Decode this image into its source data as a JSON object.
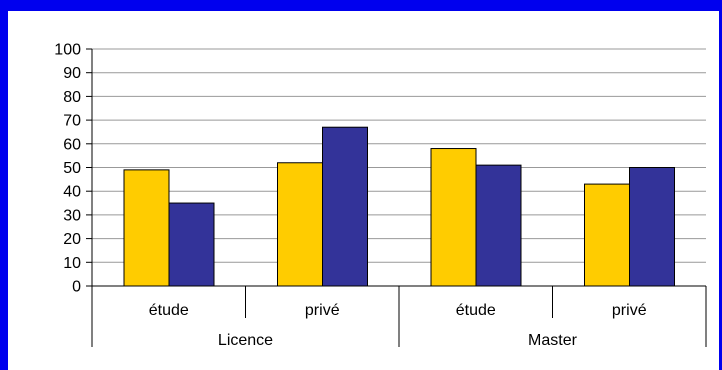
{
  "chart_data": {
    "type": "bar",
    "groups": [
      {
        "label": "Licence",
        "categories": [
          "étude",
          "privé"
        ]
      },
      {
        "label": "Master",
        "categories": [
          "étude",
          "privé"
        ]
      }
    ],
    "categories": [
      "étude",
      "privé",
      "étude",
      "privé"
    ],
    "series": [
      {
        "values": [
          49,
          52,
          58,
          43
        ],
        "color": "#ffcc00"
      },
      {
        "values": [
          35,
          67,
          51,
          50
        ],
        "color": "#333399"
      }
    ],
    "ylim": [
      0,
      100
    ],
    "yticks": [
      "0",
      "10",
      "20",
      "30",
      "40",
      "50",
      "60",
      "70",
      "80",
      "90",
      "100"
    ],
    "grid": true,
    "legend": "none",
    "title": "",
    "xlabel": "",
    "ylabel": ""
  },
  "colors": {
    "frame": "#0000ee",
    "grid": "#999999"
  }
}
